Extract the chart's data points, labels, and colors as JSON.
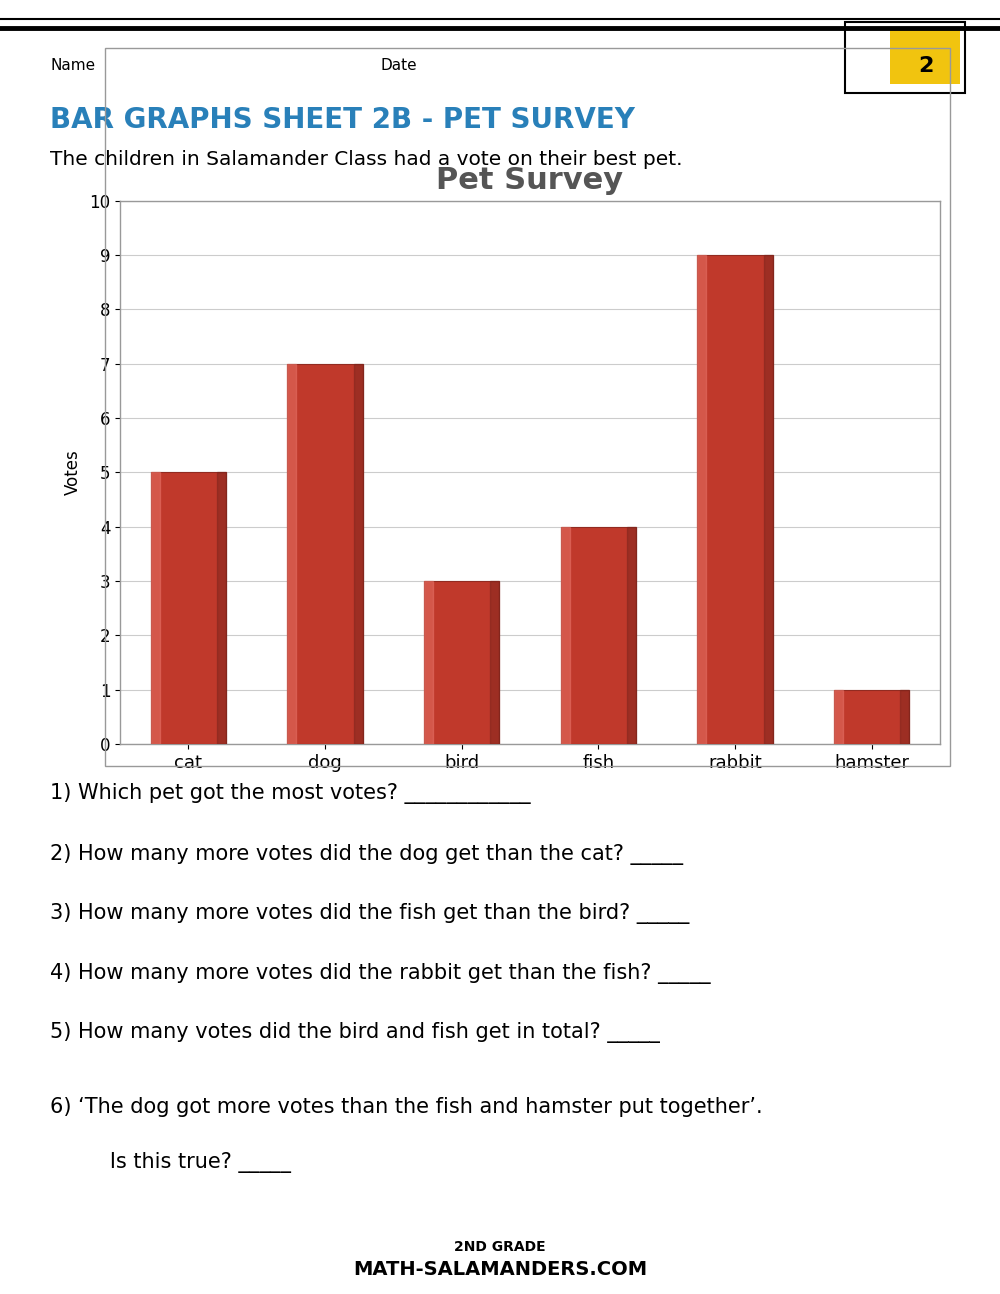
{
  "title": "BAR GRAPHS SHEET 2B - PET SURVEY",
  "subtitle": "The children in Salamander Class had a vote on their best pet.",
  "chart_title": "Pet Survey",
  "categories": [
    "cat",
    "dog",
    "bird",
    "fish",
    "rabbit",
    "hamster"
  ],
  "values": [
    5,
    7,
    3,
    4,
    9,
    1
  ],
  "bar_color": "#c0392b",
  "bar_edge_color": "#922b21",
  "ylabel": "Votes",
  "ylim": [
    0,
    10
  ],
  "yticks": [
    0,
    1,
    2,
    3,
    4,
    5,
    6,
    7,
    8,
    9,
    10
  ],
  "name_label": "Name",
  "date_label": "Date",
  "questions": [
    "1) Which pet got the most votes? ____________",
    "2) How many more votes did the dog get than the cat? _____",
    "3) How many more votes did the fish get than the bird? _____",
    "4) How many more votes did the rabbit get than the fish? _____",
    "5) How many votes did the bird and fish get in total? _____",
    "6) ‘The dog got more votes than the fish and hamster put together’."
  ],
  "question6_sub": "   Is this true? _____",
  "title_color": "#2980b9",
  "background_color": "#ffffff",
  "grid_color": "#cccccc",
  "chart_bg": "#ffffff",
  "border_color": "#999999"
}
